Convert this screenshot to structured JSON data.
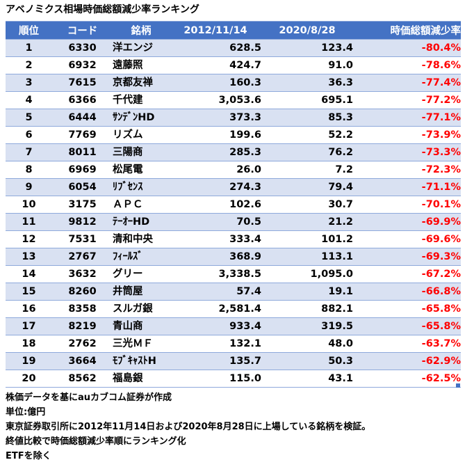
{
  "title": "アベノミクス相場時価総額減少率ランキング",
  "colors": {
    "header_bg": "#4472C4",
    "header_text": "#FFFFFF",
    "stripe": "#D9E1F2",
    "row_bg": "#FFFFFF",
    "border": "#8EA9DB",
    "negative": "#FF0000",
    "text": "#000000"
  },
  "table": {
    "field_order": [
      "rank",
      "code",
      "name",
      "v2012",
      "v2020",
      "pct"
    ],
    "columns": [
      "順位",
      "コード",
      "銘柄",
      "2012/11/14",
      "2020/8/28",
      "時価総額減少率"
    ],
    "rows": [
      {
        "rank": "1",
        "code": "6330",
        "name": "洋エンジ",
        "v2012": "628.5",
        "v2020": "123.4",
        "pct": "-80.4%"
      },
      {
        "rank": "2",
        "code": "6932",
        "name": "遠藤照",
        "v2012": "424.7",
        "v2020": "91.0",
        "pct": "-78.6%"
      },
      {
        "rank": "3",
        "code": "7615",
        "name": "京都友禅",
        "v2012": "160.3",
        "v2020": "36.3",
        "pct": "-77.4%"
      },
      {
        "rank": "4",
        "code": "6366",
        "name": "千代建",
        "v2012": "3,053.6",
        "v2020": "695.1",
        "pct": "-77.2%"
      },
      {
        "rank": "5",
        "code": "6444",
        "name": "ｻﾝﾃﾞﾝHD",
        "v2012": "373.3",
        "v2020": "85.3",
        "pct": "-77.1%"
      },
      {
        "rank": "6",
        "code": "7769",
        "name": "リズム",
        "v2012": "199.6",
        "v2020": "52.2",
        "pct": "-73.9%"
      },
      {
        "rank": "7",
        "code": "8011",
        "name": "三陽商",
        "v2012": "285.3",
        "v2020": "76.2",
        "pct": "-73.3%"
      },
      {
        "rank": "8",
        "code": "6969",
        "name": "松尾電",
        "v2012": "26.0",
        "v2020": "7.2",
        "pct": "-72.3%"
      },
      {
        "rank": "9",
        "code": "6054",
        "name": "ﾘﾌﾞｾﾝｽ",
        "v2012": "274.3",
        "v2020": "79.4",
        "pct": "-71.1%"
      },
      {
        "rank": "10",
        "code": "3175",
        "name": "ＡＰＣ",
        "v2012": "102.6",
        "v2020": "30.7",
        "pct": "-70.1%"
      },
      {
        "rank": "11",
        "code": "9812",
        "name": "ﾃｰｵｰHD",
        "v2012": "70.5",
        "v2020": "21.2",
        "pct": "-69.9%"
      },
      {
        "rank": "12",
        "code": "7531",
        "name": "清和中央",
        "v2012": "333.4",
        "v2020": "101.2",
        "pct": "-69.6%"
      },
      {
        "rank": "13",
        "code": "2767",
        "name": "ﾌｨｰﾙｽﾞ",
        "v2012": "368.9",
        "v2020": "113.1",
        "pct": "-69.3%"
      },
      {
        "rank": "14",
        "code": "3632",
        "name": "グリー",
        "v2012": "3,338.5",
        "v2020": "1,095.0",
        "pct": "-67.2%"
      },
      {
        "rank": "15",
        "code": "8260",
        "name": "井筒屋",
        "v2012": "57.4",
        "v2020": "19.1",
        "pct": "-66.8%"
      },
      {
        "rank": "16",
        "code": "8358",
        "name": "スルガ銀",
        "v2012": "2,581.4",
        "v2020": "882.1",
        "pct": "-65.8%"
      },
      {
        "rank": "17",
        "code": "8219",
        "name": "青山商",
        "v2012": "933.4",
        "v2020": "319.5",
        "pct": "-65.8%"
      },
      {
        "rank": "18",
        "code": "2762",
        "name": "三光ＭＦ",
        "v2012": "132.1",
        "v2020": "48.0",
        "pct": "-63.7%"
      },
      {
        "rank": "19",
        "code": "3664",
        "name": "ﾓﾌﾞｷｬｽﾄH",
        "v2012": "135.7",
        "v2020": "50.3",
        "pct": "-62.9%"
      },
      {
        "rank": "20",
        "code": "8562",
        "name": "福島銀",
        "v2012": "115.0",
        "v2020": "43.1",
        "pct": "-62.5%"
      }
    ]
  },
  "footnotes": [
    "株価データを基にauカブコム証券が作成",
    "単位:億円",
    "東京証券取引所に2012年11月14日および2020年8月28日に上場している銘柄を検証。",
    "終値比較で時価総額減少率順にランキング化",
    "ETFを除く"
  ],
  "chart_data": {
    "type": "table",
    "title": "アベノミクス相場時価総額減少率ランキング",
    "unit": "億円",
    "columns": [
      "順位",
      "コード",
      "銘柄",
      "2012/11/14",
      "2020/8/28",
      "時価総額減少率"
    ],
    "rows": [
      [
        1,
        "6330",
        "洋エンジ",
        628.5,
        123.4,
        "-80.4%"
      ],
      [
        2,
        "6932",
        "遠藤照",
        424.7,
        91.0,
        "-78.6%"
      ],
      [
        3,
        "7615",
        "京都友禅",
        160.3,
        36.3,
        "-77.4%"
      ],
      [
        4,
        "6366",
        "千代建",
        3053.6,
        695.1,
        "-77.2%"
      ],
      [
        5,
        "6444",
        "ｻﾝﾃﾞﾝHD",
        373.3,
        85.3,
        "-77.1%"
      ],
      [
        6,
        "7769",
        "リズム",
        199.6,
        52.2,
        "-73.9%"
      ],
      [
        7,
        "8011",
        "三陽商",
        285.3,
        76.2,
        "-73.3%"
      ],
      [
        8,
        "6969",
        "松尾電",
        26.0,
        7.2,
        "-72.3%"
      ],
      [
        9,
        "6054",
        "ﾘﾌﾞｾﾝｽ",
        274.3,
        79.4,
        "-71.1%"
      ],
      [
        10,
        "3175",
        "ＡＰＣ",
        102.6,
        30.7,
        "-70.1%"
      ],
      [
        11,
        "9812",
        "ﾃｰｵｰHD",
        70.5,
        21.2,
        "-69.9%"
      ],
      [
        12,
        "7531",
        "清和中央",
        333.4,
        101.2,
        "-69.6%"
      ],
      [
        13,
        "2767",
        "ﾌｨｰﾙｽﾞ",
        368.9,
        113.1,
        "-69.3%"
      ],
      [
        14,
        "3632",
        "グリー",
        3338.5,
        1095.0,
        "-67.2%"
      ],
      [
        15,
        "8260",
        "井筒屋",
        57.4,
        19.1,
        "-66.8%"
      ],
      [
        16,
        "8358",
        "スルガ銀",
        2581.4,
        882.1,
        "-65.8%"
      ],
      [
        17,
        "8219",
        "青山商",
        933.4,
        319.5,
        "-65.8%"
      ],
      [
        18,
        "2762",
        "三光ＭＦ",
        132.1,
        48.0,
        "-63.7%"
      ],
      [
        19,
        "3664",
        "ﾓﾌﾞｷｬｽﾄH",
        135.7,
        50.3,
        "-62.9%"
      ],
      [
        20,
        "8562",
        "福島銀",
        115.0,
        43.1,
        "-62.5%"
      ]
    ]
  }
}
